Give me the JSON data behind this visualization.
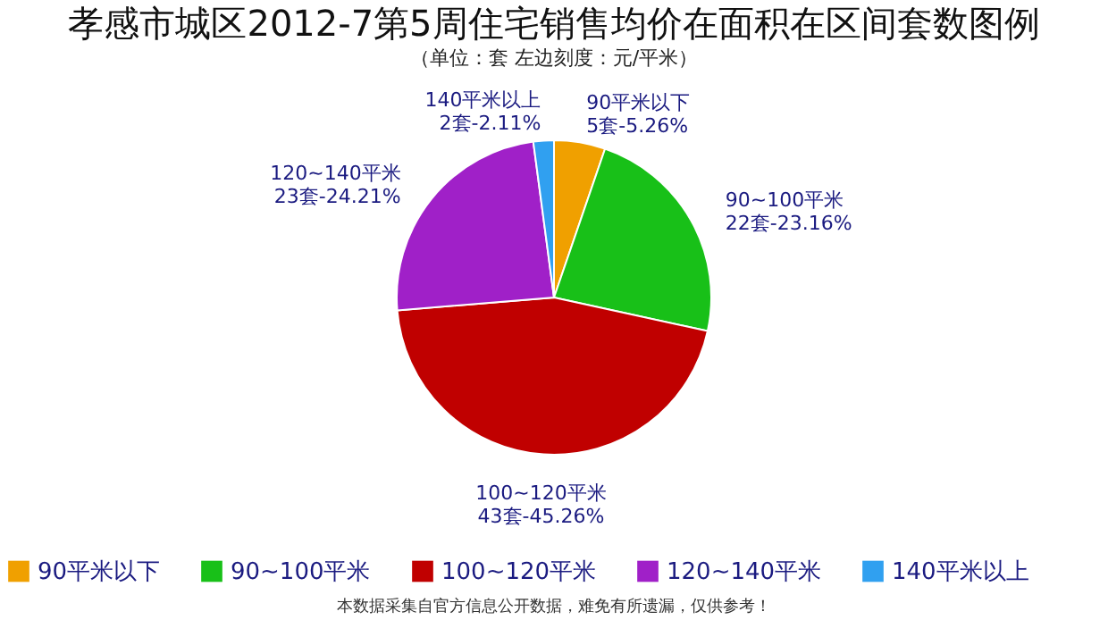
{
  "chart_data": {
    "type": "pie",
    "title": "孝感市城区2012-7第5周住宅销售均价在面积在区间套数图例",
    "subtitle": "（单位：套  左边刻度：元/平米）",
    "categories": [
      "90平米以下",
      "90~100平米",
      "100~120平米",
      "120~140平米",
      "140平米以上"
    ],
    "values": [
      5,
      22,
      43,
      23,
      2
    ],
    "value_labels": [
      "5套-5.26%",
      "22套-23.16%",
      "43套-45.26%",
      "23套-24.21%",
      "2套-2.11%"
    ],
    "colors": [
      "#f0a000",
      "#18c018",
      "#c00000",
      "#a020c8",
      "#30a0f0"
    ],
    "legend": "bottom",
    "annotations": [
      "本数据采集自官方信息公开数据，难免有所遗漏，仅供参考！"
    ]
  }
}
